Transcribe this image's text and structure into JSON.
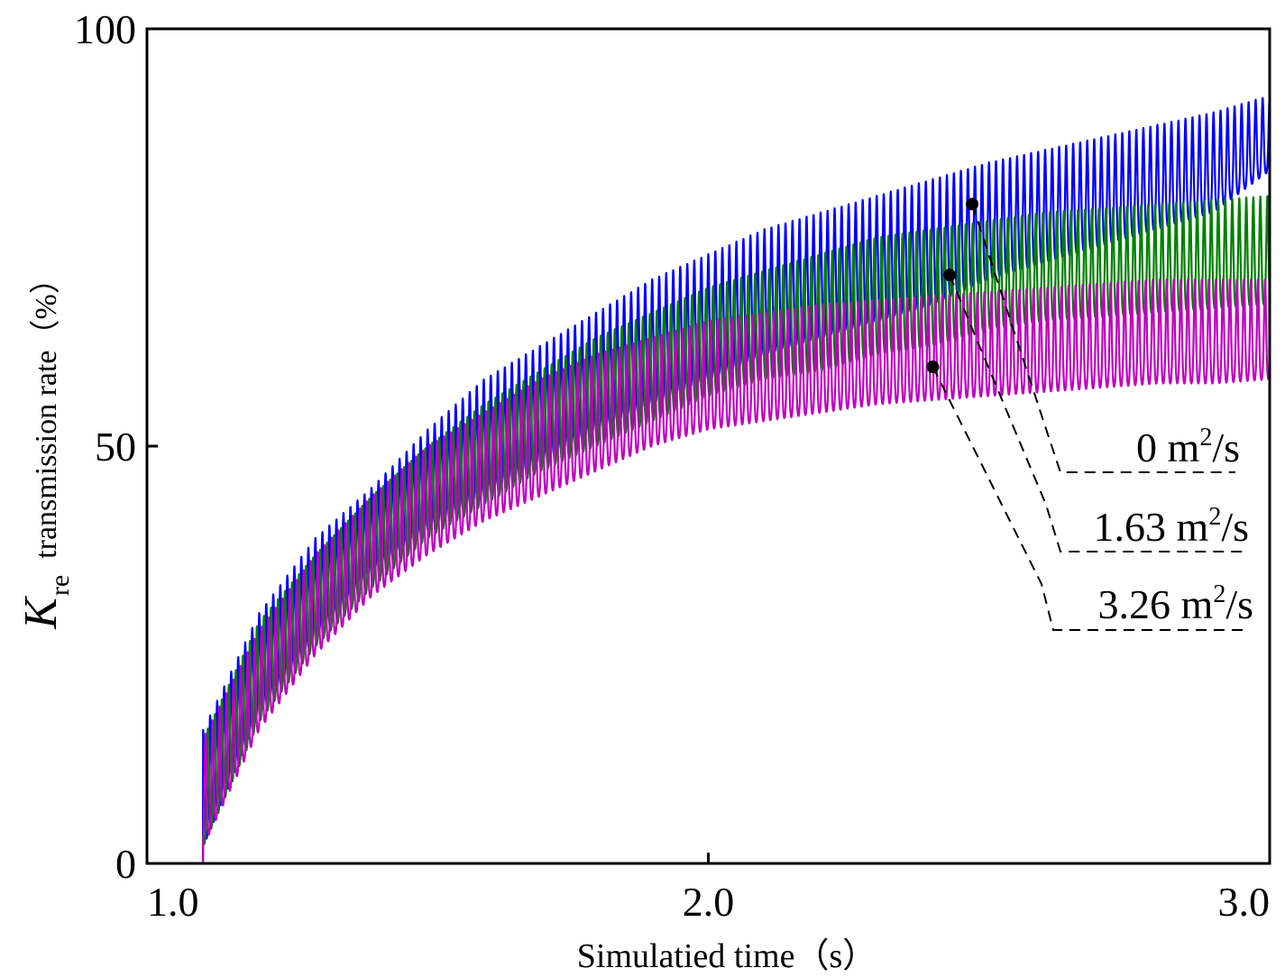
{
  "chart_data": {
    "type": "line",
    "title": "",
    "xlabel": "Simulatied time（s）",
    "ylabel": {
      "symbol": "K",
      "subscript": "re",
      "text": "transmission rate（%）"
    },
    "xlim": [
      1.0,
      3.0
    ],
    "ylim": [
      0,
      100
    ],
    "xticks": [
      1.0,
      2.0,
      3.0
    ],
    "xtick_labels": [
      "1.0",
      "2.0",
      "3.0"
    ],
    "yticks": [
      0,
      50,
      100
    ],
    "ytick_labels": [
      "0",
      "50",
      "100"
    ],
    "grid": false,
    "onset_time": 1.1,
    "oscillation_period_s": 0.0125,
    "series": [
      {
        "name": "0 m²/s",
        "label_value": "0 m",
        "label_unit": "/s",
        "color": "#0000ff",
        "marker_point": [
          2.47,
          79
        ],
        "x": [
          1.0,
          1.1,
          1.2,
          1.3,
          1.4,
          1.5,
          1.6,
          1.7,
          1.8,
          1.9,
          2.0,
          2.1,
          2.2,
          2.3,
          2.4,
          2.5,
          2.6,
          2.7,
          2.8,
          2.9,
          3.0
        ],
        "upper": [
          0,
          16,
          30,
          39,
          45,
          52,
          58,
          62,
          66,
          70,
          73,
          76,
          78,
          80,
          82,
          84,
          85.5,
          87,
          88.5,
          90,
          92
        ],
        "lower": [
          0,
          2,
          18,
          27,
          35,
          40,
          44,
          48,
          52,
          55,
          58,
          61,
          63,
          65,
          67,
          70,
          72,
          74,
          76,
          78,
          83
        ]
      },
      {
        "name": "1.63 m²/s",
        "label_value": "1.63 m",
        "label_unit": "/s",
        "color": "#008000",
        "marker_point": [
          2.43,
          70.5
        ],
        "x": [
          1.0,
          1.1,
          1.2,
          1.3,
          1.4,
          1.5,
          1.6,
          1.7,
          1.8,
          1.9,
          2.0,
          2.1,
          2.2,
          2.3,
          2.4,
          2.5,
          2.6,
          2.7,
          2.8,
          2.9,
          3.0
        ],
        "upper": [
          0,
          15,
          29,
          37,
          44,
          50,
          55,
          59,
          63,
          66,
          69,
          71,
          73,
          75,
          76,
          77,
          78,
          78.5,
          79,
          79.5,
          80
        ],
        "lower": [
          0,
          2,
          17,
          26,
          33,
          39,
          43,
          47,
          50,
          53,
          56,
          58,
          59,
          61,
          62,
          64,
          65,
          65.5,
          66,
          66.5,
          67
        ]
      },
      {
        "name": "3.26 m²/s",
        "label_value": "3.26 m",
        "label_unit": "/s",
        "color": "#c000c0",
        "marker_point": [
          2.4,
          59.5
        ],
        "x": [
          1.0,
          1.1,
          1.2,
          1.3,
          1.4,
          1.5,
          1.6,
          1.7,
          1.8,
          1.9,
          2.0,
          2.1,
          2.2,
          2.3,
          2.4,
          2.5,
          2.6,
          2.7,
          2.8,
          2.9,
          3.0
        ],
        "upper": [
          0,
          15,
          28,
          37,
          44,
          50,
          54,
          58,
          61,
          63,
          65,
          66,
          67,
          67.5,
          68,
          68.5,
          69,
          69.5,
          70,
          70,
          70
        ],
        "lower": [
          0,
          2,
          16,
          25,
          32,
          37,
          41,
          44,
          47,
          50,
          52,
          53,
          54,
          55,
          55.5,
          56,
          56.5,
          57,
          57.5,
          57.5,
          58
        ]
      }
    ]
  }
}
